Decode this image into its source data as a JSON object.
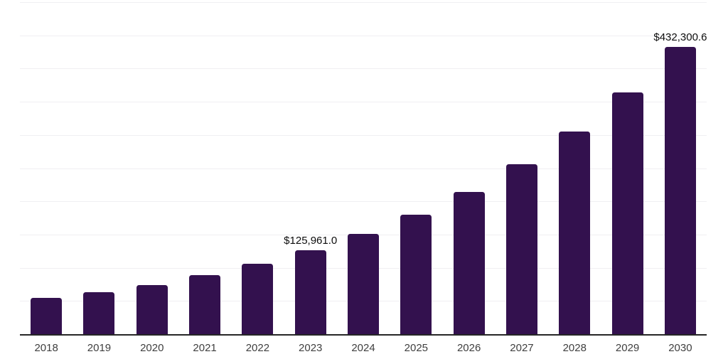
{
  "chart_data": {
    "type": "bar",
    "title": "",
    "xlabel": "",
    "ylabel": "",
    "categories": [
      "2018",
      "2019",
      "2020",
      "2021",
      "2022",
      "2023",
      "2024",
      "2025",
      "2026",
      "2027",
      "2028",
      "2029",
      "2030"
    ],
    "values": [
      54200,
      63400,
      74100,
      89100,
      105900,
      125961.0,
      150600,
      179400,
      213700,
      255700,
      304900,
      363700,
      432300.6
    ],
    "value_labels": [
      "",
      "",
      "",
      "",
      "",
      "$125,961.0",
      "",
      "",
      "",
      "",
      "",
      "",
      "$432,300.6"
    ],
    "ylim": [
      0,
      500000
    ],
    "gridline_step": 50000,
    "grid": true,
    "legend": false,
    "y_tick_labels_visible": false,
    "colors": {
      "bar": "#33114e",
      "axis_line": "#262626",
      "gridline": "#f0eff2",
      "tick_label": "#3f3f3f",
      "value_label": "#0d0d0d",
      "background": "#ffffff"
    }
  }
}
